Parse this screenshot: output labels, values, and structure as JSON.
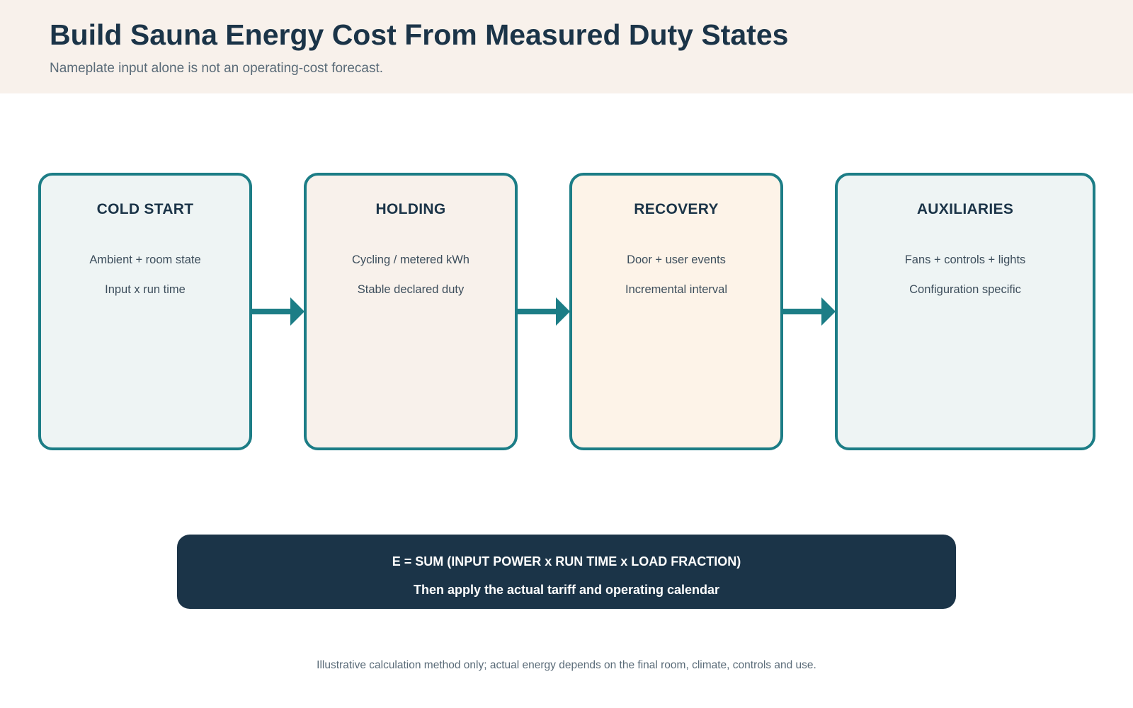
{
  "header": {
    "title": "Build Sauna Energy Cost From Measured Duty States",
    "subtitle": "Nameplate input alone is not an operating-cost forecast."
  },
  "stages": [
    {
      "title": "COLD START",
      "lines": [
        "Ambient + room state",
        "Input x run time"
      ],
      "fill": "#eef4f4"
    },
    {
      "title": "HOLDING",
      "lines": [
        "Cycling / metered kWh",
        "Stable declared duty"
      ],
      "fill": "#f8f1eb"
    },
    {
      "title": "RECOVERY",
      "lines": [
        "Door + user events",
        "Incremental interval"
      ],
      "fill": "#fdf3e8"
    },
    {
      "title": "AUXILIARIES",
      "lines": [
        "Fans + controls + lights",
        "Configuration specific"
      ],
      "fill": "#eef4f4"
    }
  ],
  "formula": {
    "main": "E = SUM (INPUT POWER x RUN TIME x LOAD FRACTION)",
    "sub": "Then apply the actual tariff and operating calendar"
  },
  "footnote": "Illustrative calculation method only; actual energy depends on the final room, climate, controls and use.",
  "colors": {
    "accent": "#1c7d86",
    "navy": "#1b3448",
    "header_bg": "#f8f1eb"
  }
}
